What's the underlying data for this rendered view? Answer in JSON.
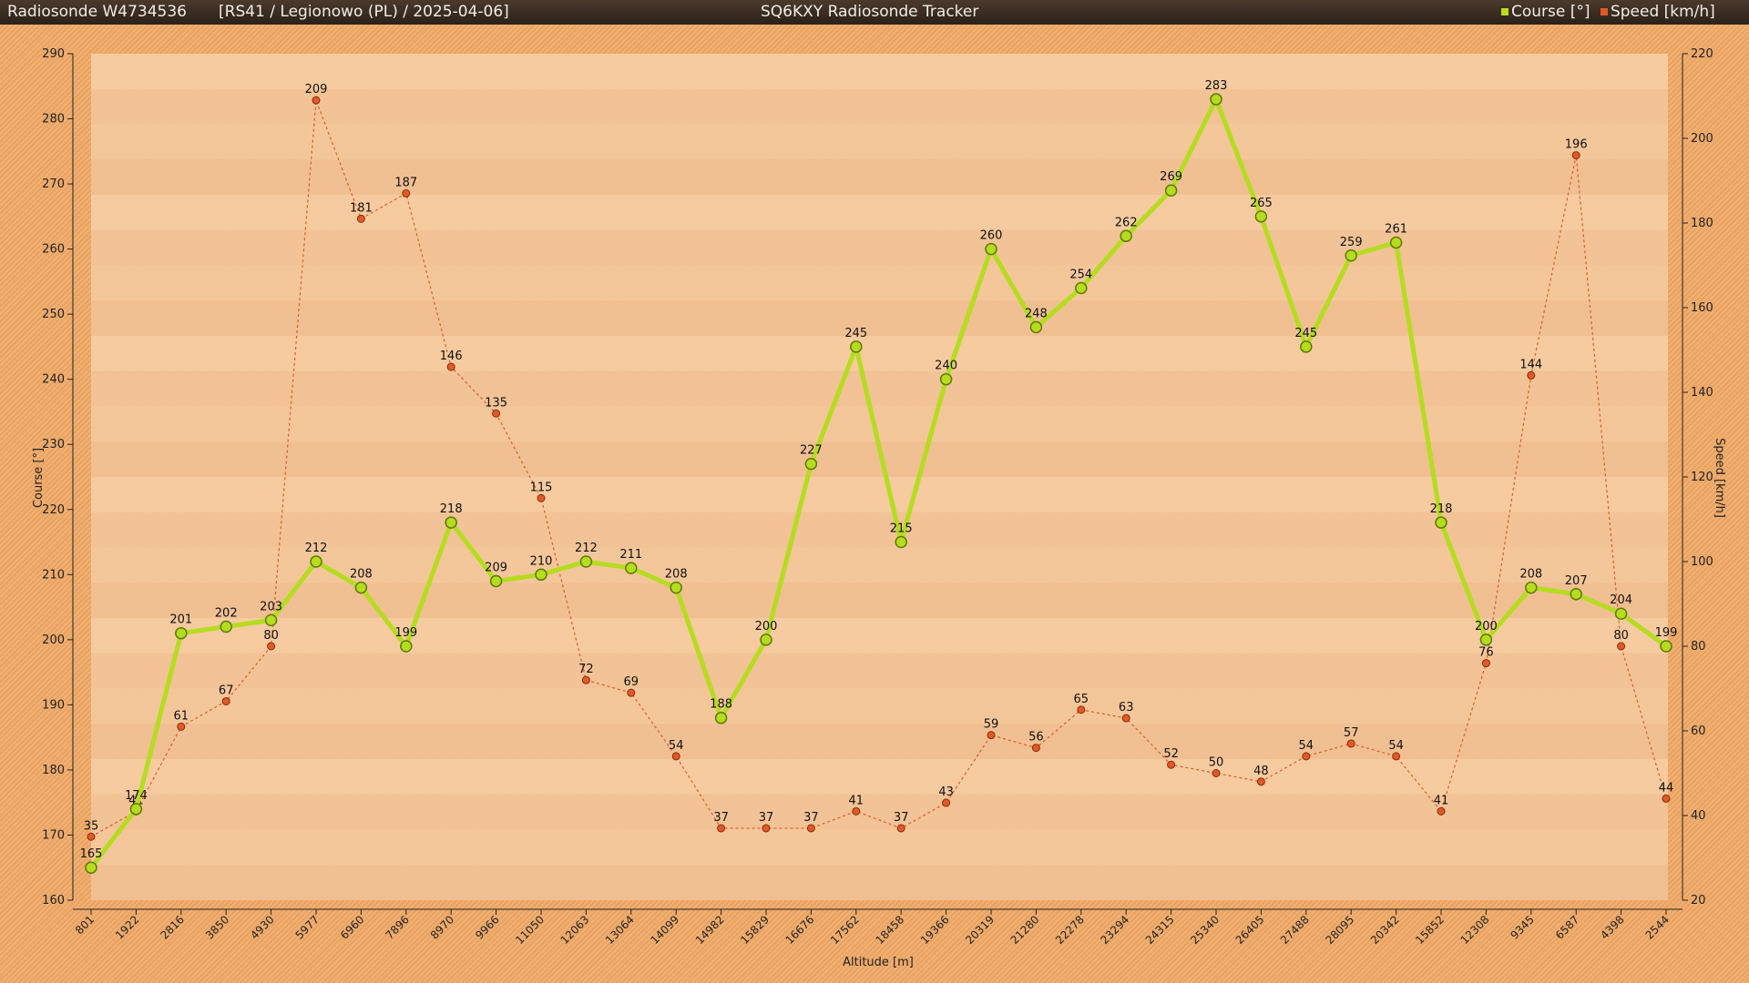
{
  "header": {
    "title_left": "Radiosonde W4734536",
    "subtitle": "[RS41 / Legionowo (PL) / 2025-04-06]",
    "title_center": "SQ6KXY Radiosonde Tracker",
    "legend": [
      {
        "label": "Course [°]",
        "color": "#b5dc1f"
      },
      {
        "label": "Speed [km/h]",
        "color": "#e05a28"
      }
    ]
  },
  "chart_data": {
    "type": "line",
    "xlabel": "Altitude [m]",
    "ylabel": "Course [°]",
    "y2label": "Speed [km/h]",
    "ylim": [
      160,
      290
    ],
    "y2lim": [
      20,
      220
    ],
    "yticks": [
      160,
      170,
      180,
      190,
      200,
      210,
      220,
      230,
      240,
      250,
      260,
      270,
      280,
      290
    ],
    "y2ticks": [
      20,
      40,
      60,
      80,
      100,
      120,
      140,
      160,
      180,
      200,
      220
    ],
    "categories": [
      "801",
      "1922",
      "2816",
      "3850",
      "4930",
      "5977",
      "6960",
      "7896",
      "8970",
      "9966",
      "11050",
      "12063",
      "13064",
      "14099",
      "14982",
      "15829",
      "16676",
      "17562",
      "18458",
      "19366",
      "20319",
      "21280",
      "22278",
      "23294",
      "24315",
      "25340",
      "26405",
      "27488",
      "28095",
      "20342",
      "15852",
      "12308",
      "9345",
      "6587",
      "4398",
      "2544"
    ],
    "series": [
      {
        "name": "Course [°]",
        "axis": "left",
        "color": "#b5dc1f",
        "values": [
          165,
          174,
          201,
          202,
          203,
          212,
          208,
          199,
          218,
          209,
          210,
          212,
          211,
          208,
          188,
          200,
          227,
          245,
          215,
          240,
          260,
          248,
          254,
          262,
          269,
          283,
          265,
          245,
          259,
          261,
          218,
          200,
          208,
          207,
          204,
          199
        ]
      },
      {
        "name": "Speed [km/h]",
        "axis": "right",
        "color": "#e05a28",
        "values": [
          35,
          41,
          61,
          67,
          80,
          209,
          181,
          187,
          146,
          135,
          115,
          72,
          69,
          54,
          37,
          37,
          37,
          41,
          37,
          43,
          59,
          56,
          65,
          63,
          52,
          50,
          48,
          54,
          57,
          54,
          41,
          76,
          144,
          196,
          80,
          44
        ]
      }
    ]
  }
}
